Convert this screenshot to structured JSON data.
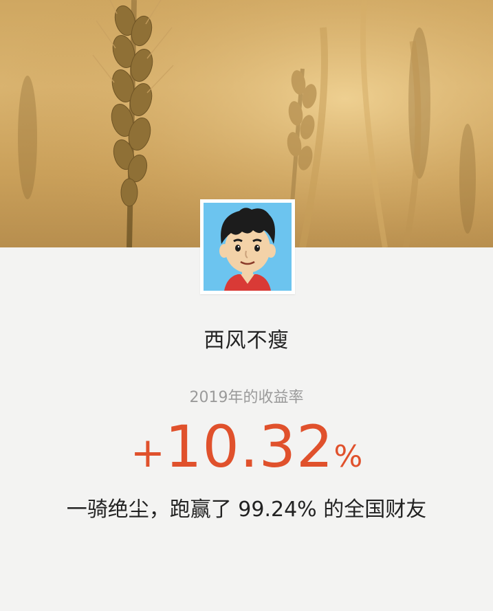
{
  "profile": {
    "username": "西风不瘦",
    "avatar_icon": "cartoon-boy-avatar"
  },
  "stats": {
    "label": "2019年的收益率",
    "rate_sign": "+",
    "rate_value": "10.32",
    "rate_unit": "%",
    "description": "一骑绝尘，跑赢了 99.24% 的全国财友"
  },
  "colors": {
    "accent": "#e0512c",
    "avatar_bg": "#6cc4ef",
    "background": "#f3f3f2"
  }
}
